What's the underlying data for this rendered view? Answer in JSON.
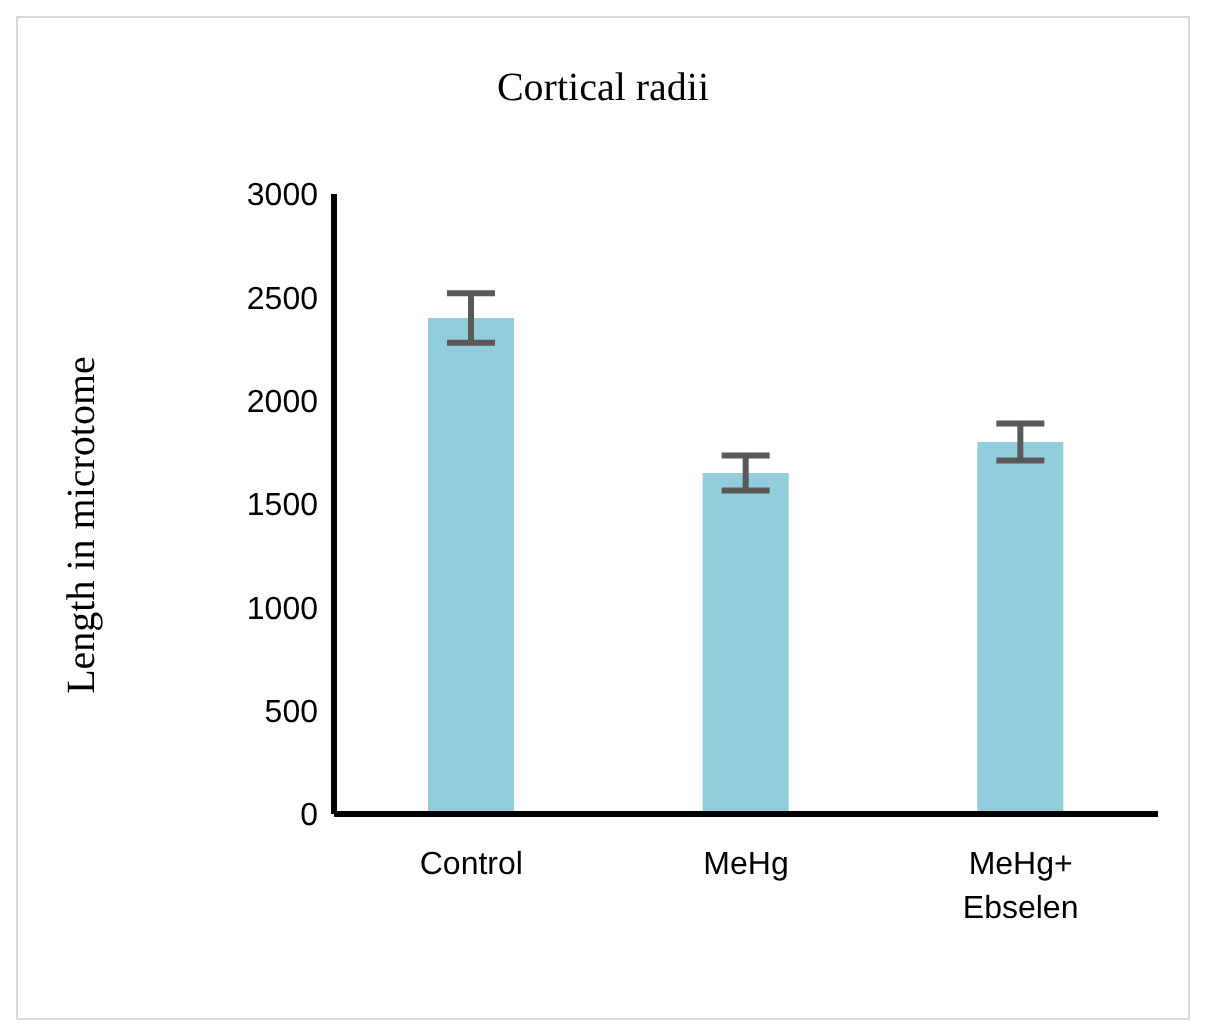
{
  "chart_data": {
    "type": "bar",
    "title": "Cortical radii",
    "ylabel": "Length in microtome",
    "categories": [
      "Control",
      "MeHg",
      "MeHg+ Ebselen"
    ],
    "values": [
      2400,
      1650,
      1800
    ],
    "errors": [
      120,
      85,
      90
    ],
    "color": "#92cddc",
    "ylim": [
      0,
      3000
    ],
    "yticks": [
      0,
      500,
      1000,
      1500,
      2000,
      2500,
      3000
    ],
    "grid": false,
    "legend": false
  }
}
